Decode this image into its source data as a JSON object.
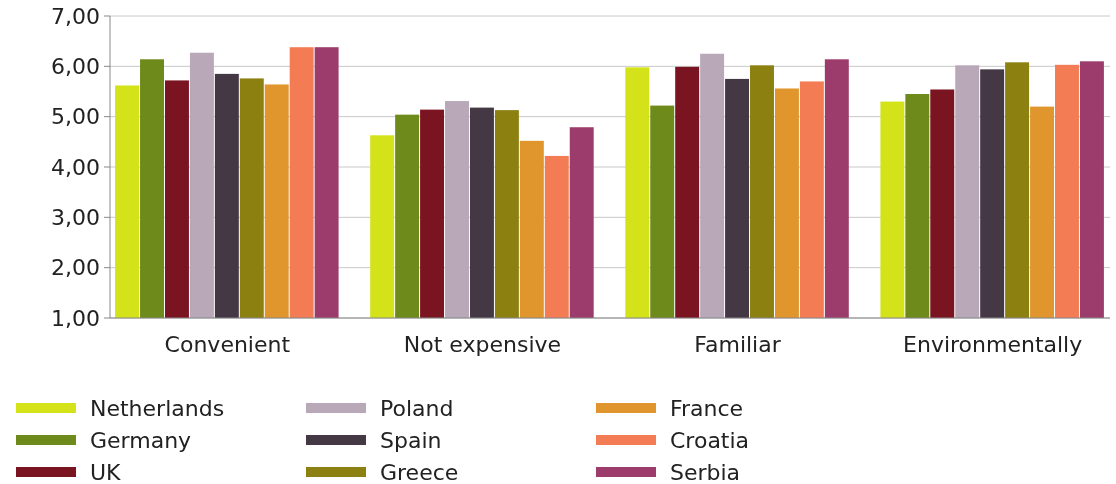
{
  "chart_data": {
    "type": "bar",
    "categories": [
      "Convenient",
      "Not expensive",
      "Familiar",
      "Environmentally"
    ],
    "series": [
      {
        "name": "Netherlands",
        "color": "#d4e21a",
        "values": [
          5.62,
          4.63,
          5.98,
          5.3
        ]
      },
      {
        "name": "Germany",
        "color": "#6e8a1a",
        "values": [
          6.14,
          5.04,
          5.22,
          5.45
        ]
      },
      {
        "name": "UK",
        "color": "#7a1420",
        "values": [
          5.72,
          5.14,
          5.99,
          5.54
        ]
      },
      {
        "name": "Poland",
        "color": "#b8a8b8",
        "values": [
          6.27,
          5.31,
          6.25,
          6.02
        ]
      },
      {
        "name": "Spain",
        "color": "#443844",
        "values": [
          5.85,
          5.18,
          5.75,
          5.94
        ]
      },
      {
        "name": "Greece",
        "color": "#8c8010",
        "values": [
          5.76,
          5.13,
          6.02,
          6.08
        ]
      },
      {
        "name": "France",
        "color": "#e0962c",
        "values": [
          5.64,
          4.52,
          5.56,
          5.2
        ]
      },
      {
        "name": "Croatia",
        "color": "#f47c54",
        "values": [
          6.38,
          4.22,
          5.7,
          6.03
        ]
      },
      {
        "name": "Serbia",
        "color": "#9c3c6c",
        "values": [
          6.38,
          4.79,
          6.14,
          6.1
        ]
      }
    ],
    "ylim": [
      1,
      7
    ],
    "yticks": [
      {
        "value": 1,
        "label": "1,00"
      },
      {
        "value": 2,
        "label": "2,00"
      },
      {
        "value": 3,
        "label": "3,00"
      },
      {
        "value": 4,
        "label": "4,00"
      },
      {
        "value": 5,
        "label": "5,00"
      },
      {
        "value": 6,
        "label": "6,00"
      },
      {
        "value": 7,
        "label": "7,00"
      }
    ],
    "grid": "y",
    "legend": "bottom"
  }
}
